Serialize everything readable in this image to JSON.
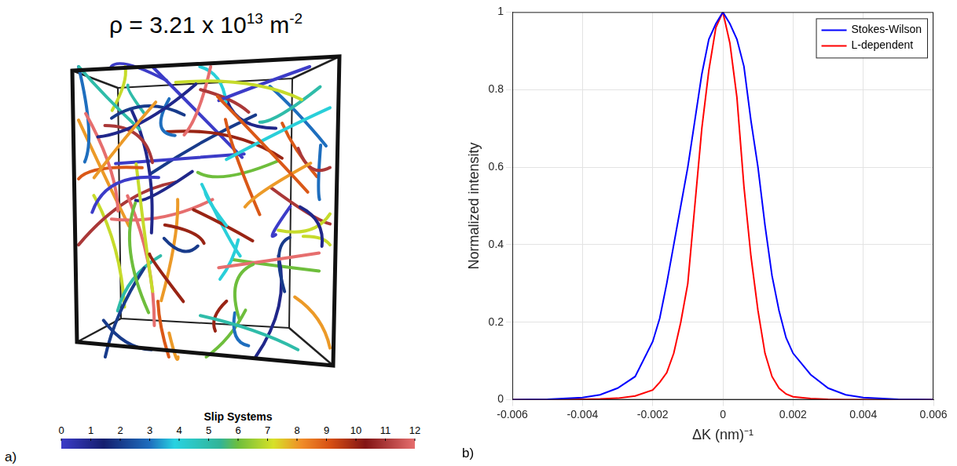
{
  "panel_a": {
    "label": "a)",
    "title_parts": [
      {
        "text": "ρ = 3.21 x 10"
      },
      {
        "text": "13",
        "sup": true
      },
      {
        "text": " m"
      },
      {
        "text": "-2",
        "sup": true
      }
    ],
    "colorbar": {
      "title": "Slip Systems",
      "range": [
        0,
        12
      ],
      "ticks": [
        0,
        1,
        2,
        3,
        4,
        5,
        6,
        7,
        8,
        9,
        10,
        11,
        12
      ]
    }
  },
  "chart_data": {
    "type": "line",
    "panel_label": "b)",
    "x_label": "ΔK (nm)⁻¹",
    "y_label": "Normalized intensity",
    "x": [
      -0.006,
      -0.005,
      -0.004,
      -0.0035,
      -0.003,
      -0.0025,
      -0.002,
      -0.0018,
      -0.0016,
      -0.0014,
      -0.0012,
      -0.001,
      -0.0008,
      -0.0006,
      -0.0004,
      -0.0002,
      0,
      0.0002,
      0.0004,
      0.0006,
      0.0008,
      0.001,
      0.0012,
      0.0014,
      0.0016,
      0.0018,
      0.002,
      0.0025,
      0.003,
      0.0035,
      0.004,
      0.005,
      0.006
    ],
    "series": [
      {
        "name": "Stokes-Wilson",
        "color": "#0000ff",
        "values": [
          0,
          0.001,
          0.006,
          0.013,
          0.03,
          0.06,
          0.15,
          0.21,
          0.3,
          0.4,
          0.5,
          0.6,
          0.72,
          0.84,
          0.93,
          0.97,
          1,
          0.97,
          0.93,
          0.86,
          0.72,
          0.6,
          0.45,
          0.32,
          0.23,
          0.16,
          0.12,
          0.065,
          0.03,
          0.013,
          0.006,
          0.001,
          0
        ]
      },
      {
        "name": "L-dependent",
        "color": "#ff0000",
        "values": [
          0,
          0,
          0.001,
          0.002,
          0.004,
          0.01,
          0.025,
          0.045,
          0.07,
          0.12,
          0.2,
          0.3,
          0.5,
          0.7,
          0.85,
          0.96,
          1,
          0.92,
          0.78,
          0.55,
          0.37,
          0.23,
          0.12,
          0.06,
          0.03,
          0.015,
          0.008,
          0.003,
          0.001,
          0,
          0,
          0,
          0
        ]
      }
    ],
    "xlim": [
      -0.006,
      0.006
    ],
    "xticks": [
      -0.006,
      -0.004,
      -0.002,
      0,
      0.002,
      0.004,
      0.006
    ],
    "ylim": [
      0,
      1
    ],
    "yticks": [
      0,
      0.2,
      0.4,
      0.6,
      0.8,
      1
    ],
    "grid": true,
    "legend": "top-right"
  }
}
